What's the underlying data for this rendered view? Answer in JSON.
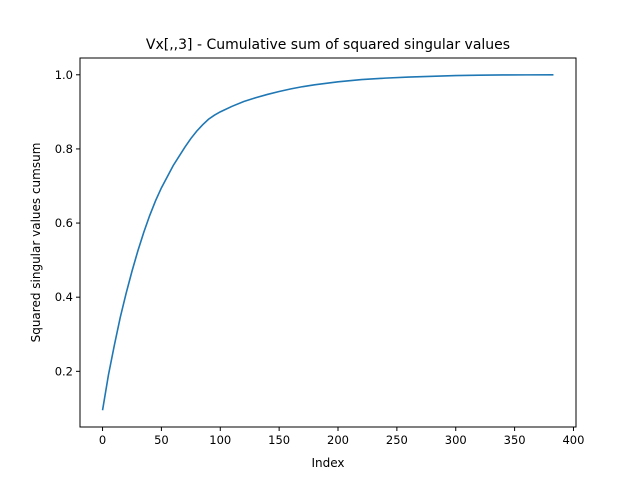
{
  "chart_data": {
    "type": "line",
    "title": "Vx[,,3] - Cumulative sum of squared singular values",
    "xlabel": "Index",
    "ylabel": "Squared singular values cumsum",
    "xlim": [
      -19.15,
      402.15
    ],
    "ylim": [
      0.0498,
      1.0453
    ],
    "xticks": [
      0,
      50,
      100,
      150,
      200,
      250,
      300,
      350,
      400
    ],
    "yticks": [
      0.2,
      0.4,
      0.6,
      0.8,
      1.0
    ],
    "xtick_labels": [
      "0",
      "50",
      "100",
      "150",
      "200",
      "250",
      "300",
      "350",
      "400"
    ],
    "ytick_labels": [
      "0.2",
      "0.4",
      "0.6",
      "0.8",
      "1.0"
    ],
    "grid": false,
    "color": "#1f77b4",
    "series": [
      {
        "x": [
          0,
          5,
          10,
          15,
          20,
          25,
          30,
          35,
          40,
          45,
          50,
          55,
          60,
          65,
          70,
          75,
          80,
          85,
          90,
          95,
          100,
          110,
          120,
          130,
          140,
          150,
          160,
          170,
          180,
          190,
          200,
          220,
          240,
          260,
          280,
          300,
          320,
          340,
          360,
          383
        ],
        "y": [
          0.095,
          0.19,
          0.27,
          0.345,
          0.41,
          0.47,
          0.525,
          0.575,
          0.62,
          0.66,
          0.695,
          0.725,
          0.755,
          0.78,
          0.805,
          0.828,
          0.848,
          0.865,
          0.88,
          0.891,
          0.9,
          0.915,
          0.928,
          0.938,
          0.947,
          0.955,
          0.962,
          0.968,
          0.973,
          0.977,
          0.981,
          0.987,
          0.991,
          0.994,
          0.996,
          0.998,
          0.999,
          0.9995,
          0.9998,
          1.0
        ]
      }
    ]
  }
}
